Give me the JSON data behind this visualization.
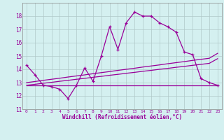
{
  "xlabel": "Windchill (Refroidissement éolien,°C)",
  "x_hours": [
    0,
    1,
    2,
    3,
    4,
    5,
    6,
    7,
    8,
    9,
    10,
    11,
    12,
    13,
    14,
    15,
    16,
    17,
    18,
    19,
    20,
    21,
    22,
    23
  ],
  "line1": [
    14.3,
    13.6,
    12.8,
    12.7,
    12.5,
    11.8,
    12.8,
    14.1,
    13.1,
    15.0,
    17.2,
    15.5,
    17.5,
    18.3,
    18.0,
    18.0,
    17.5,
    17.2,
    16.8,
    15.3,
    15.1,
    13.3,
    13.0,
    12.8
  ],
  "line2": [
    12.8,
    12.8,
    12.8,
    12.8,
    12.8,
    12.8,
    12.8,
    12.8,
    12.8,
    12.8,
    12.8,
    12.8,
    12.8,
    12.8,
    12.8,
    12.8,
    12.8,
    12.8,
    12.8,
    12.8,
    12.8,
    12.8,
    12.8,
    12.8
  ],
  "line3": [
    12.8,
    12.87,
    12.95,
    13.02,
    13.1,
    13.17,
    13.25,
    13.32,
    13.4,
    13.47,
    13.55,
    13.62,
    13.7,
    13.77,
    13.85,
    13.92,
    14.0,
    14.07,
    14.15,
    14.22,
    14.3,
    14.37,
    14.45,
    14.8
  ],
  "line4": [
    13.0,
    13.08,
    13.17,
    13.25,
    13.33,
    13.42,
    13.5,
    13.58,
    13.67,
    13.75,
    13.83,
    13.92,
    14.0,
    14.08,
    14.17,
    14.25,
    14.33,
    14.42,
    14.5,
    14.58,
    14.67,
    14.75,
    14.83,
    15.2
  ],
  "color": "#990099",
  "bg_color": "#d4f0f0",
  "grid_color": "#b0c8c8",
  "ylim": [
    11,
    19
  ],
  "yticks": [
    11,
    12,
    13,
    14,
    15,
    16,
    17,
    18
  ],
  "marker": "+"
}
